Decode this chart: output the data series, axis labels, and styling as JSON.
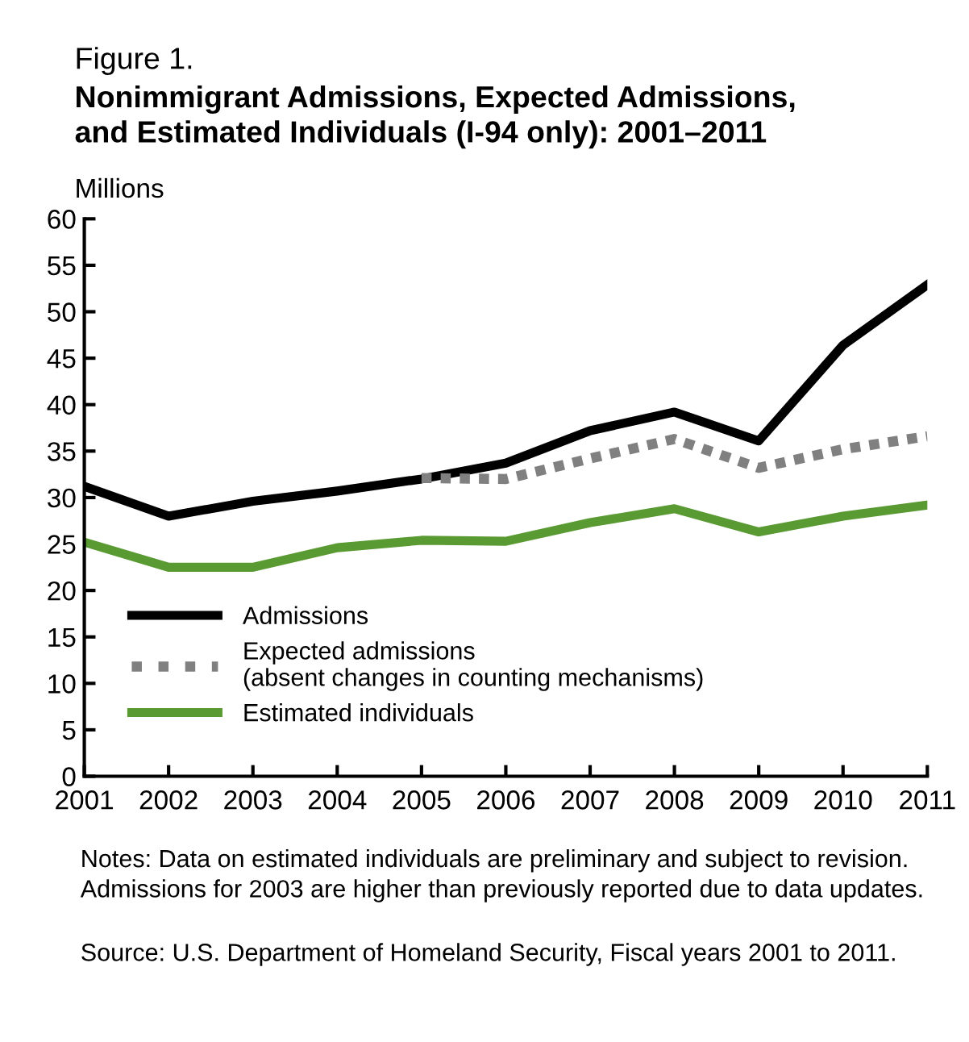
{
  "chart_data": {
    "type": "line",
    "subtitle": "Figure 1.",
    "title": "Nonimmigrant Admissions, Expected Admissions,\nand Estimated Individuals (I-94 only): 2001–2011",
    "ylabel": "Millions",
    "x": [
      2001,
      2002,
      2003,
      2004,
      2005,
      2006,
      2007,
      2008,
      2009,
      2010,
      2011
    ],
    "series": [
      {
        "name": "Admissions",
        "color": "#000000",
        "line_style": "solid",
        "values": [
          31.2,
          28.0,
          29.6,
          30.7,
          32.0,
          33.7,
          37.2,
          39.2,
          36.1,
          46.4,
          52.9
        ]
      },
      {
        "name": "Expected admissions\n(absent changes in counting mechanisms)",
        "color": "#808080",
        "line_style": "dotted",
        "values": [
          null,
          null,
          null,
          null,
          32.1,
          32.0,
          34.2,
          36.3,
          33.2,
          35.2,
          36.6
        ]
      },
      {
        "name": "Estimated individuals",
        "color": "#5a9a32",
        "line_style": "solid",
        "values": [
          25.2,
          22.5,
          22.5,
          24.6,
          25.4,
          25.3,
          27.3,
          28.8,
          26.3,
          28.0,
          29.2
        ]
      }
    ],
    "xlim": [
      2001,
      2011
    ],
    "xticks": [
      2001,
      2002,
      2003,
      2004,
      2005,
      2006,
      2007,
      2008,
      2009,
      2010,
      2011
    ],
    "ylim": [
      0,
      60
    ],
    "yticks": [
      0,
      5,
      10,
      15,
      20,
      25,
      30,
      35,
      40,
      45,
      50,
      55,
      60
    ],
    "grid": false,
    "legend": "bottom left",
    "marker": "none",
    "annotations": [
      "Notes: Data on estimated individuals are preliminary and subject to revision. Admissions for 2003 are higher than previously reported due to data updates.",
      "Source: U.S. Department of Homeland Security, Fiscal years 2001 to 2011."
    ]
  }
}
